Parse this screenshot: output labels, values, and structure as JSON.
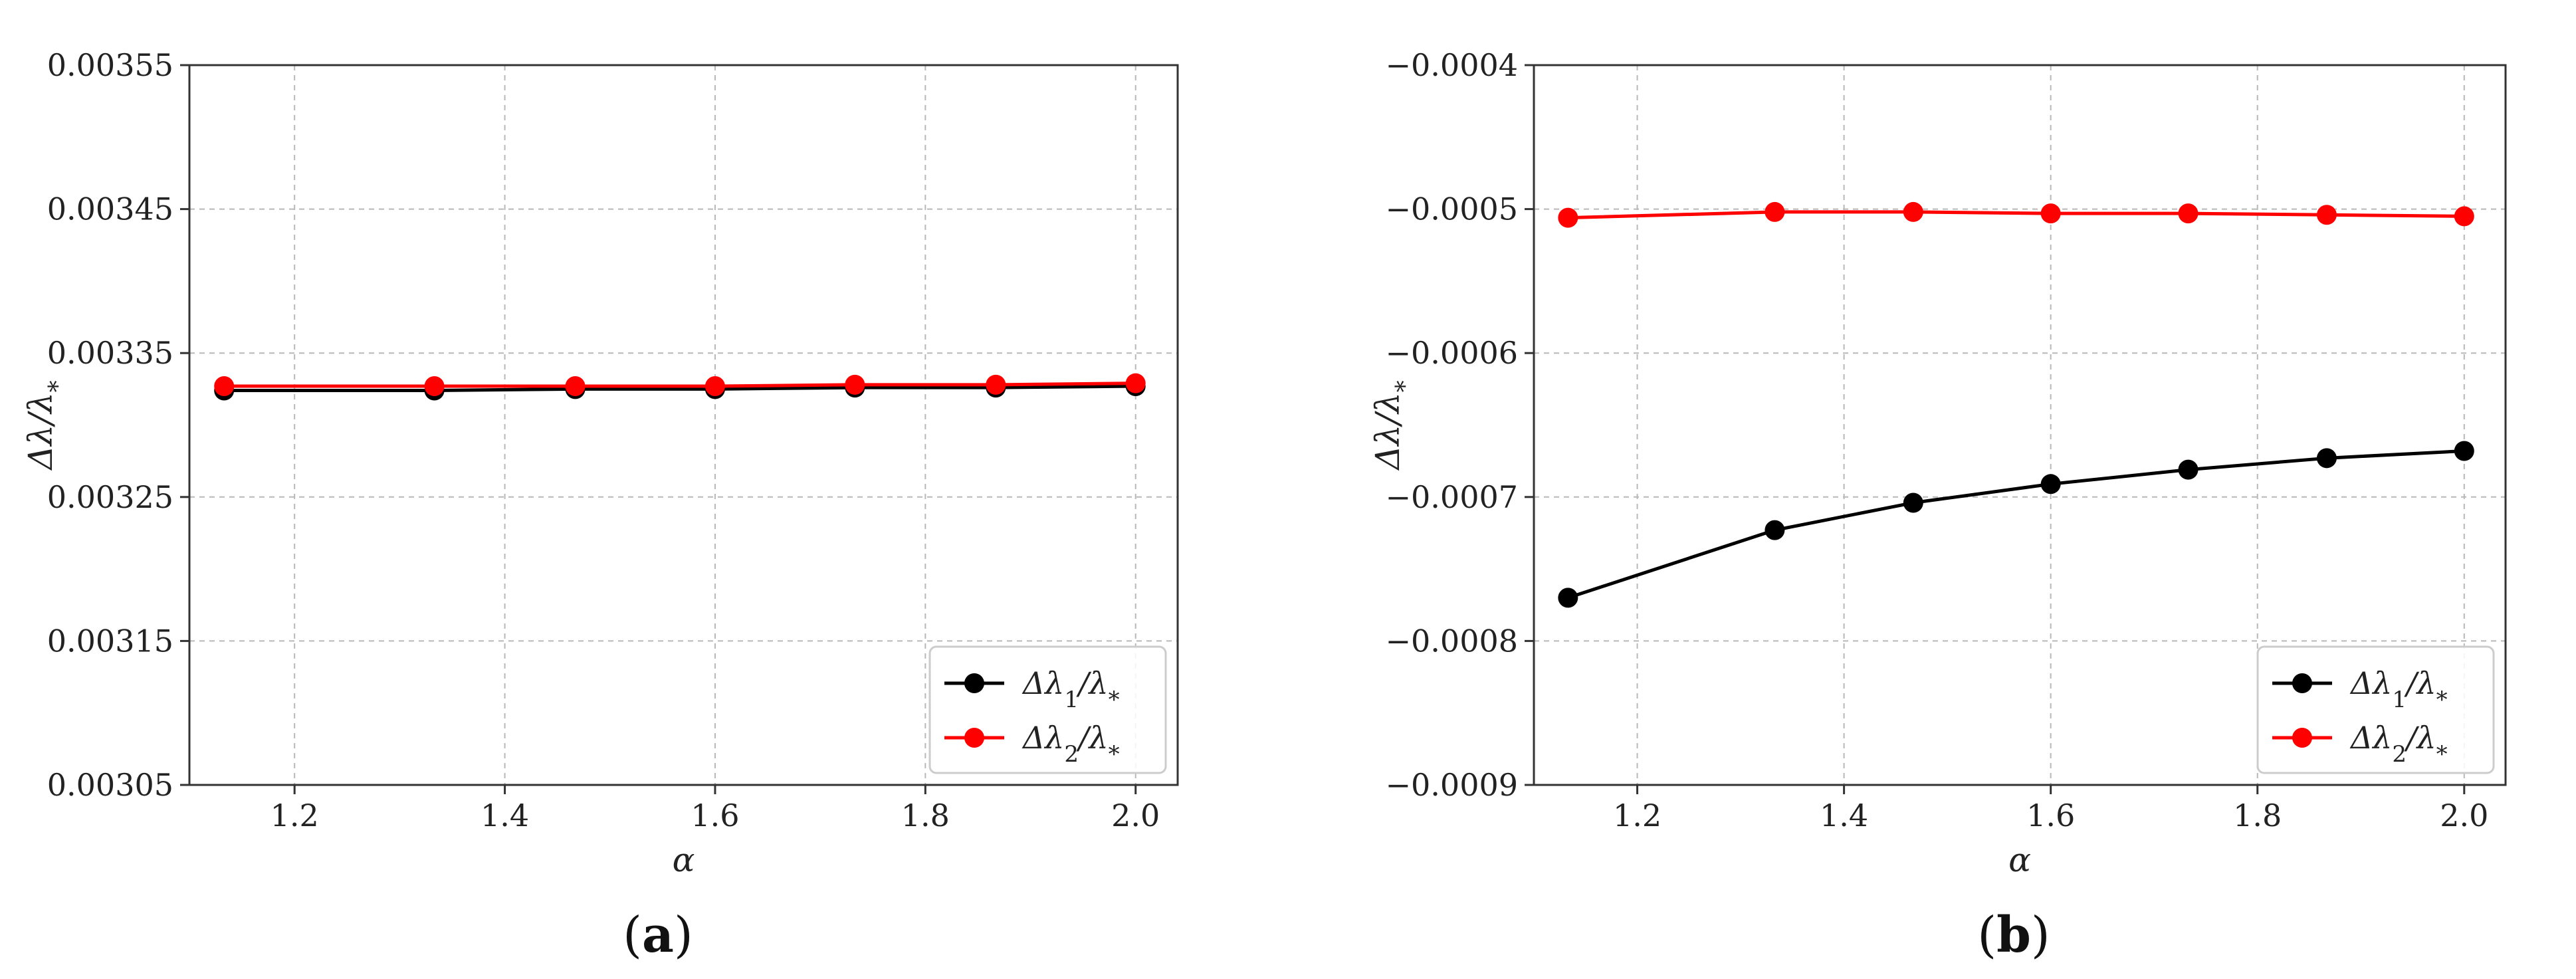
{
  "chart_data": [
    {
      "type": "line",
      "panel": "a",
      "xlabel": "α",
      "ylabel": "Δλ/λ*",
      "xlim": [
        1.1,
        2.04
      ],
      "ylim": [
        0.00305,
        0.00355
      ],
      "x_ticks": [
        1.2,
        1.4,
        1.6,
        1.8,
        2.0
      ],
      "x_tick_labels": [
        "1.2",
        "1.4",
        "1.6",
        "1.8",
        "2.0"
      ],
      "y_ticks": [
        0.00305,
        0.00315,
        0.00325,
        0.00335,
        0.00345,
        0.00355
      ],
      "y_tick_labels": [
        "0.00305",
        "0.00315",
        "0.00325",
        "0.00335",
        "0.00345",
        "0.00355"
      ],
      "grid": true,
      "legend_position": "lower-right",
      "x": [
        1.133,
        1.333,
        1.467,
        1.6,
        1.733,
        1.867,
        2.0
      ],
      "series": [
        {
          "name": "Δλ₁/λ*",
          "color": "#000000",
          "values": [
            0.003324,
            0.003324,
            0.003325,
            0.003325,
            0.003326,
            0.003326,
            0.003327
          ]
        },
        {
          "name": "Δλ₂/λ*",
          "color": "#ff0000",
          "values": [
            0.003327,
            0.003327,
            0.003327,
            0.003327,
            0.003328,
            0.003328,
            0.003329
          ]
        }
      ]
    },
    {
      "type": "line",
      "panel": "b",
      "xlabel": "α",
      "ylabel": "Δλ/λ*",
      "xlim": [
        1.1,
        2.04
      ],
      "ylim": [
        -0.0009,
        -0.0004
      ],
      "x_ticks": [
        1.2,
        1.4,
        1.6,
        1.8,
        2.0
      ],
      "x_tick_labels": [
        "1.2",
        "1.4",
        "1.6",
        "1.8",
        "2.0"
      ],
      "y_ticks": [
        -0.0009,
        -0.0008,
        -0.0007,
        -0.0006,
        -0.0005,
        -0.0004
      ],
      "y_tick_labels": [
        "−0.0009",
        "−0.0008",
        "−0.0007",
        "−0.0006",
        "−0.0005",
        "−0.0004"
      ],
      "grid": true,
      "legend_position": "lower-right",
      "x": [
        1.133,
        1.333,
        1.467,
        1.6,
        1.733,
        1.867,
        2.0
      ],
      "series": [
        {
          "name": "Δλ₁/λ*",
          "color": "#000000",
          "values": [
            -0.00077,
            -0.000723,
            -0.000704,
            -0.000691,
            -0.000681,
            -0.000673,
            -0.000668
          ]
        },
        {
          "name": "Δλ₂/λ*",
          "color": "#ff0000",
          "values": [
            -0.000506,
            -0.000502,
            -0.000502,
            -0.000503,
            -0.000503,
            -0.000504,
            -0.000505
          ]
        }
      ]
    }
  ],
  "captions": {
    "a": "a",
    "b": "b"
  }
}
